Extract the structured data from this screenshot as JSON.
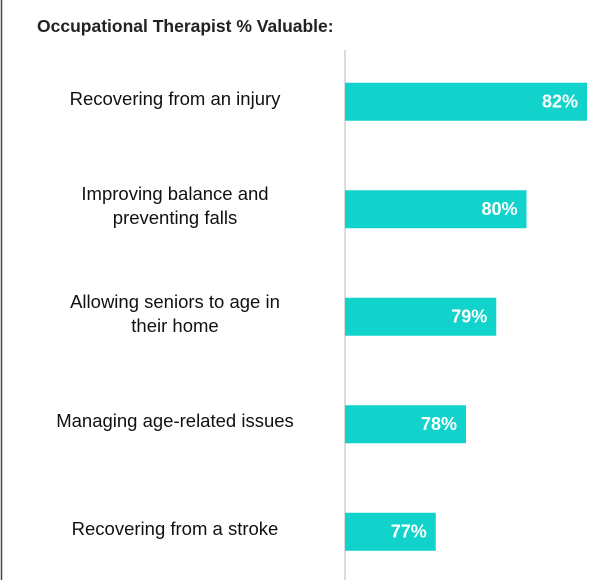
{
  "chart_data": {
    "type": "hbar",
    "title": "Occupational Therapist % Valuable:",
    "categories": [
      "Recovering from an injury",
      "Improving balance and\npreventing falls",
      "Allowing seniors to age in\ntheir home",
      "Managing age-related issues",
      "Recovering from a stroke"
    ],
    "values": [
      82,
      80,
      79,
      78,
      77
    ],
    "value_labels": [
      "82%",
      "80%",
      "79%",
      "78%",
      "77%"
    ],
    "color": "#12d3cc",
    "xlim": [
      74,
      82
    ]
  }
}
